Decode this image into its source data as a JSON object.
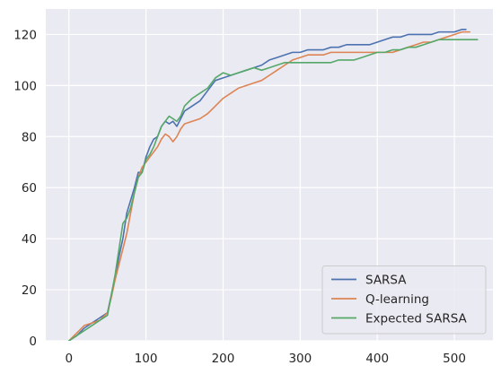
{
  "chart_data": {
    "type": "line",
    "title": "",
    "xlabel": "",
    "ylabel": "",
    "xlim": [
      -30,
      550
    ],
    "ylim": [
      0,
      130
    ],
    "xticks": [
      0,
      100,
      200,
      300,
      400,
      500
    ],
    "yticks": [
      0,
      20,
      40,
      60,
      80,
      100,
      120
    ],
    "grid": true,
    "legend_position": "lower-right",
    "background_color": "#eaeaf2",
    "grid_color": "#ffffff",
    "series": [
      {
        "name": "SARSA",
        "color": "#4c72b0",
        "points": [
          [
            0,
            0
          ],
          [
            10,
            2
          ],
          [
            20,
            5
          ],
          [
            30,
            7
          ],
          [
            40,
            9
          ],
          [
            50,
            11
          ],
          [
            55,
            18
          ],
          [
            60,
            25
          ],
          [
            65,
            33
          ],
          [
            70,
            40
          ],
          [
            75,
            50
          ],
          [
            80,
            55
          ],
          [
            85,
            60
          ],
          [
            90,
            66
          ],
          [
            95,
            66
          ],
          [
            100,
            72
          ],
          [
            105,
            76
          ],
          [
            110,
            79
          ],
          [
            115,
            80
          ],
          [
            120,
            84
          ],
          [
            125,
            86
          ],
          [
            130,
            85
          ],
          [
            135,
            86
          ],
          [
            140,
            84
          ],
          [
            145,
            87
          ],
          [
            150,
            90
          ],
          [
            160,
            92
          ],
          [
            170,
            94
          ],
          [
            180,
            98
          ],
          [
            190,
            102
          ],
          [
            200,
            103
          ],
          [
            210,
            104
          ],
          [
            220,
            105
          ],
          [
            230,
            106
          ],
          [
            240,
            107
          ],
          [
            250,
            108
          ],
          [
            260,
            110
          ],
          [
            270,
            111
          ],
          [
            280,
            112
          ],
          [
            290,
            113
          ],
          [
            300,
            113
          ],
          [
            310,
            114
          ],
          [
            320,
            114
          ],
          [
            330,
            114
          ],
          [
            340,
            115
          ],
          [
            350,
            115
          ],
          [
            360,
            116
          ],
          [
            370,
            116
          ],
          [
            380,
            116
          ],
          [
            390,
            116
          ],
          [
            400,
            117
          ],
          [
            410,
            118
          ],
          [
            420,
            119
          ],
          [
            430,
            119
          ],
          [
            440,
            120
          ],
          [
            450,
            120
          ],
          [
            460,
            120
          ],
          [
            470,
            120
          ],
          [
            480,
            121
          ],
          [
            490,
            121
          ],
          [
            500,
            121
          ],
          [
            510,
            122
          ],
          [
            515,
            122
          ]
        ]
      },
      {
        "name": "Q-learning",
        "color": "#dd8452",
        "points": [
          [
            0,
            0
          ],
          [
            10,
            3
          ],
          [
            20,
            6
          ],
          [
            30,
            7
          ],
          [
            40,
            8
          ],
          [
            50,
            11
          ],
          [
            55,
            17
          ],
          [
            60,
            24
          ],
          [
            65,
            30
          ],
          [
            70,
            36
          ],
          [
            75,
            42
          ],
          [
            80,
            50
          ],
          [
            85,
            58
          ],
          [
            90,
            64
          ],
          [
            95,
            68
          ],
          [
            100,
            70
          ],
          [
            105,
            72
          ],
          [
            110,
            74
          ],
          [
            115,
            76
          ],
          [
            120,
            79
          ],
          [
            125,
            81
          ],
          [
            130,
            80
          ],
          [
            135,
            78
          ],
          [
            140,
            80
          ],
          [
            145,
            83
          ],
          [
            150,
            85
          ],
          [
            160,
            86
          ],
          [
            170,
            87
          ],
          [
            180,
            89
          ],
          [
            190,
            92
          ],
          [
            200,
            95
          ],
          [
            210,
            97
          ],
          [
            220,
            99
          ],
          [
            230,
            100
          ],
          [
            240,
            101
          ],
          [
            250,
            102
          ],
          [
            260,
            104
          ],
          [
            270,
            106
          ],
          [
            280,
            108
          ],
          [
            290,
            110
          ],
          [
            300,
            111
          ],
          [
            310,
            112
          ],
          [
            320,
            112
          ],
          [
            330,
            112
          ],
          [
            340,
            113
          ],
          [
            350,
            113
          ],
          [
            360,
            113
          ],
          [
            370,
            113
          ],
          [
            380,
            113
          ],
          [
            390,
            113
          ],
          [
            400,
            113
          ],
          [
            410,
            113
          ],
          [
            420,
            113
          ],
          [
            430,
            114
          ],
          [
            440,
            115
          ],
          [
            450,
            116
          ],
          [
            460,
            117
          ],
          [
            470,
            117
          ],
          [
            480,
            118
          ],
          [
            490,
            119
          ],
          [
            500,
            120
          ],
          [
            510,
            121
          ],
          [
            520,
            121
          ]
        ]
      },
      {
        "name": "Expected SARSA",
        "color": "#55a868",
        "points": [
          [
            0,
            0
          ],
          [
            10,
            2
          ],
          [
            20,
            4
          ],
          [
            30,
            6
          ],
          [
            40,
            8
          ],
          [
            50,
            10
          ],
          [
            55,
            18
          ],
          [
            60,
            26
          ],
          [
            65,
            36
          ],
          [
            70,
            46
          ],
          [
            75,
            48
          ],
          [
            80,
            52
          ],
          [
            85,
            58
          ],
          [
            90,
            64
          ],
          [
            95,
            66
          ],
          [
            100,
            71
          ],
          [
            105,
            73
          ],
          [
            110,
            76
          ],
          [
            115,
            80
          ],
          [
            120,
            84
          ],
          [
            125,
            86
          ],
          [
            130,
            88
          ],
          [
            135,
            87
          ],
          [
            140,
            86
          ],
          [
            145,
            88
          ],
          [
            150,
            92
          ],
          [
            160,
            95
          ],
          [
            170,
            97
          ],
          [
            180,
            99
          ],
          [
            190,
            103
          ],
          [
            200,
            105
          ],
          [
            210,
            104
          ],
          [
            220,
            105
          ],
          [
            230,
            106
          ],
          [
            240,
            107
          ],
          [
            250,
            106
          ],
          [
            260,
            107
          ],
          [
            270,
            108
          ],
          [
            280,
            109
          ],
          [
            290,
            109
          ],
          [
            300,
            109
          ],
          [
            310,
            109
          ],
          [
            320,
            109
          ],
          [
            330,
            109
          ],
          [
            340,
            109
          ],
          [
            350,
            110
          ],
          [
            360,
            110
          ],
          [
            370,
            110
          ],
          [
            380,
            111
          ],
          [
            390,
            112
          ],
          [
            400,
            113
          ],
          [
            410,
            113
          ],
          [
            420,
            114
          ],
          [
            430,
            114
          ],
          [
            440,
            115
          ],
          [
            450,
            115
          ],
          [
            460,
            116
          ],
          [
            470,
            117
          ],
          [
            480,
            118
          ],
          [
            490,
            118
          ],
          [
            500,
            118
          ],
          [
            510,
            118
          ],
          [
            520,
            118
          ],
          [
            530,
            118
          ]
        ]
      }
    ]
  }
}
